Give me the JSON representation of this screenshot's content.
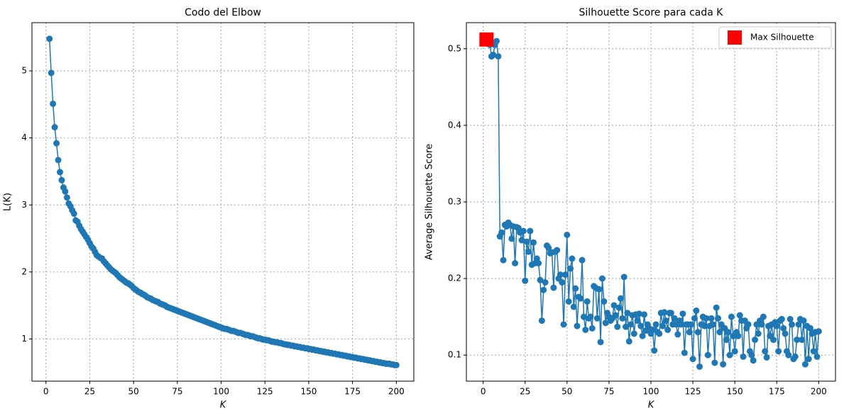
{
  "chart_data": [
    {
      "type": "line",
      "title": "Codo del Elbow",
      "xlabel": "K",
      "ylabel": "L(K)",
      "xlim": [
        -8,
        210
      ],
      "ylim": [
        0.37,
        5.72
      ],
      "xticks": [
        0,
        25,
        50,
        75,
        100,
        125,
        150,
        175,
        200
      ],
      "yticks": [
        1,
        2,
        3,
        4,
        5
      ],
      "grid": true,
      "series": [
        {
          "color": "#1f77b4",
          "marker": "circle",
          "x": [
            2,
            3,
            4,
            5,
            6,
            7,
            8,
            9,
            10,
            11,
            12,
            13,
            14,
            15,
            16,
            17,
            18,
            19,
            20,
            21,
            22,
            23,
            24,
            25,
            26,
            27,
            28,
            29,
            30,
            31,
            32,
            33,
            34,
            35,
            36,
            37,
            38,
            39,
            40,
            41,
            42,
            43,
            44,
            45,
            46,
            47,
            48,
            49,
            50,
            51,
            52,
            53,
            54,
            55,
            56,
            57,
            58,
            59,
            60,
            61,
            62,
            63,
            64,
            65,
            66,
            67,
            68,
            69,
            70,
            71,
            72,
            73,
            74,
            75,
            76,
            77,
            78,
            79,
            80,
            81,
            82,
            83,
            84,
            85,
            86,
            87,
            88,
            89,
            90,
            91,
            92,
            93,
            94,
            95,
            96,
            97,
            98,
            99,
            100,
            101,
            102,
            103,
            104,
            105,
            106,
            107,
            108,
            109,
            110,
            111,
            112,
            113,
            114,
            115,
            116,
            117,
            118,
            119,
            120,
            121,
            122,
            123,
            124,
            125,
            126,
            127,
            128,
            129,
            130,
            131,
            132,
            133,
            134,
            135,
            136,
            137,
            138,
            139,
            140,
            141,
            142,
            143,
            144,
            145,
            146,
            147,
            148,
            149,
            150,
            151,
            152,
            153,
            154,
            155,
            156,
            157,
            158,
            159,
            160,
            161,
            162,
            163,
            164,
            165,
            166,
            167,
            168,
            169,
            170,
            171,
            172,
            173,
            174,
            175,
            176,
            177,
            178,
            179,
            180,
            181,
            182,
            183,
            184,
            185,
            186,
            187,
            188,
            189,
            190,
            191,
            192,
            193,
            194,
            195,
            196,
            197,
            198,
            199,
            200
          ],
          "values": [
            5.48,
            4.97,
            4.51,
            4.16,
            3.92,
            3.67,
            3.49,
            3.37,
            3.26,
            3.2,
            3.11,
            3.02,
            2.98,
            2.92,
            2.87,
            2.77,
            2.75,
            2.69,
            2.64,
            2.6,
            2.56,
            2.52,
            2.48,
            2.43,
            2.38,
            2.35,
            2.3,
            2.25,
            2.23,
            2.21,
            2.2,
            2.16,
            2.13,
            2.1,
            2.07,
            2.04,
            2.02,
            2.0,
            1.98,
            1.95,
            1.92,
            1.9,
            1.88,
            1.86,
            1.84,
            1.83,
            1.81,
            1.79,
            1.76,
            1.74,
            1.72,
            1.7,
            1.69,
            1.67,
            1.66,
            1.64,
            1.62,
            1.61,
            1.6,
            1.58,
            1.57,
            1.56,
            1.55,
            1.53,
            1.52,
            1.51,
            1.5,
            1.48,
            1.47,
            1.46,
            1.45,
            1.44,
            1.43,
            1.42,
            1.41,
            1.4,
            1.39,
            1.38,
            1.37,
            1.36,
            1.35,
            1.34,
            1.33,
            1.32,
            1.31,
            1.3,
            1.29,
            1.28,
            1.27,
            1.26,
            1.25,
            1.24,
            1.23,
            1.22,
            1.21,
            1.2,
            1.19,
            1.18,
            1.17,
            1.16,
            1.15,
            1.15,
            1.14,
            1.13,
            1.12,
            1.12,
            1.11,
            1.1,
            1.09,
            1.09,
            1.08,
            1.07,
            1.06,
            1.06,
            1.05,
            1.04,
            1.04,
            1.03,
            1.02,
            1.01,
            1.01,
            1.0,
            0.99,
            0.99,
            0.98,
            0.98,
            0.97,
            0.96,
            0.96,
            0.95,
            0.95,
            0.94,
            0.94,
            0.93,
            0.92,
            0.92,
            0.91,
            0.91,
            0.9,
            0.9,
            0.89,
            0.89,
            0.88,
            0.88,
            0.87,
            0.87,
            0.86,
            0.86,
            0.85,
            0.85,
            0.84,
            0.84,
            0.83,
            0.83,
            0.82,
            0.82,
            0.81,
            0.81,
            0.8,
            0.8,
            0.79,
            0.79,
            0.78,
            0.78,
            0.77,
            0.77,
            0.76,
            0.76,
            0.75,
            0.75,
            0.74,
            0.74,
            0.73,
            0.73,
            0.72,
            0.72,
            0.71,
            0.71,
            0.7,
            0.7,
            0.69,
            0.69,
            0.68,
            0.68,
            0.67,
            0.67,
            0.66,
            0.66,
            0.65,
            0.65,
            0.64,
            0.64,
            0.63,
            0.63,
            0.63,
            0.62,
            0.62,
            0.61,
            0.61
          ]
        }
      ]
    },
    {
      "type": "line",
      "title": "Silhouette Score para cada K",
      "xlabel": "K",
      "ylabel": "Average Silhouette Score",
      "xlim": [
        -10,
        210
      ],
      "ylim": [
        0.066,
        0.534
      ],
      "xticks": [
        0,
        25,
        50,
        75,
        100,
        125,
        150,
        175,
        200
      ],
      "yticks": [
        0.1,
        0.2,
        0.3,
        0.4,
        0.5
      ],
      "grid": true,
      "legend": "upper right",
      "series": [
        {
          "color": "#1f77b4",
          "marker": "circle",
          "x": [
            2,
            3,
            4,
            5,
            6,
            7,
            8,
            9,
            10,
            11,
            12,
            13,
            14,
            15,
            16,
            17,
            18,
            19,
            20,
            21,
            22,
            23,
            24,
            25,
            26,
            27,
            28,
            29,
            30,
            31,
            32,
            33,
            34,
            35,
            36,
            37,
            38,
            39,
            40,
            41,
            42,
            43,
            44,
            45,
            46,
            47,
            48,
            49,
            50,
            51,
            52,
            53,
            54,
            55,
            56,
            57,
            58,
            59,
            60,
            61,
            62,
            63,
            64,
            65,
            66,
            67,
            68,
            69,
            70,
            71,
            72,
            73,
            74,
            75,
            76,
            77,
            78,
            79,
            80,
            81,
            82,
            83,
            84,
            85,
            86,
            87,
            88,
            89,
            90,
            91,
            92,
            93,
            94,
            95,
            96,
            97,
            98,
            99,
            100,
            101,
            102,
            103,
            104,
            105,
            106,
            107,
            108,
            109,
            110,
            111,
            112,
            113,
            114,
            115,
            116,
            117,
            118,
            119,
            120,
            121,
            122,
            123,
            124,
            125,
            126,
            127,
            128,
            129,
            130,
            131,
            132,
            133,
            134,
            135,
            136,
            137,
            138,
            139,
            140,
            141,
            142,
            143,
            144,
            145,
            146,
            147,
            148,
            149,
            150,
            151,
            152,
            153,
            154,
            155,
            156,
            157,
            158,
            159,
            160,
            161,
            162,
            163,
            164,
            165,
            166,
            167,
            168,
            169,
            170,
            171,
            172,
            173,
            174,
            175,
            176,
            177,
            178,
            179,
            180,
            181,
            182,
            183,
            184,
            185,
            186,
            187,
            188,
            189,
            190,
            191,
            192,
            193,
            194,
            195,
            196,
            197,
            198,
            199,
            200
          ],
          "values": [
            0.512,
            0.51,
            0.505,
            0.49,
            0.492,
            0.505,
            0.51,
            0.49,
            0.255,
            0.26,
            0.224,
            0.27,
            0.268,
            0.273,
            0.27,
            0.252,
            0.268,
            0.22,
            0.267,
            0.266,
            0.26,
            0.25,
            0.262,
            0.197,
            0.248,
            0.235,
            0.262,
            0.218,
            0.247,
            0.22,
            0.226,
            0.22,
            0.198,
            0.145,
            0.185,
            0.195,
            0.243,
            0.24,
            0.233,
            0.234,
            0.188,
            0.235,
            0.237,
            0.2,
            0.205,
            0.195,
            0.14,
            0.205,
            0.257,
            0.17,
            0.213,
            0.226,
            0.163,
            0.187,
            0.138,
            0.176,
            0.174,
            0.224,
            0.15,
            0.133,
            0.17,
            0.148,
            0.15,
            0.135,
            0.19,
            0.188,
            0.148,
            0.186,
            0.117,
            0.2,
            0.17,
            0.142,
            0.155,
            0.15,
            0.145,
            0.148,
            0.165,
            0.152,
            0.137,
            0.162,
            0.174,
            0.148,
            0.202,
            0.137,
            0.155,
            0.118,
            0.14,
            0.152,
            0.128,
            0.153,
            0.145,
            0.154,
            0.138,
            0.125,
            0.153,
            0.132,
            0.14,
            0.135,
            0.128,
            0.133,
            0.106,
            0.14,
            0.13,
            0.128,
            0.155,
            0.138,
            0.156,
            0.145,
            0.133,
            0.155,
            0.155,
            0.14,
            0.148,
            0.14,
            0.127,
            0.145,
            0.14,
            0.154,
            0.103,
            0.14,
            0.14,
            0.13,
            0.14,
            0.095,
            0.148,
            0.158,
            0.13,
            0.085,
            0.14,
            0.15,
            0.138,
            0.148,
            0.1,
            0.138,
            0.148,
            0.14,
            0.09,
            0.162,
            0.148,
            0.13,
            0.14,
            0.088,
            0.135,
            0.12,
            0.13,
            0.1,
            0.15,
            0.125,
            0.105,
            0.13,
            0.125,
            0.152,
            0.145,
            0.098,
            0.145,
            0.135,
            0.14,
            0.105,
            0.1,
            0.093,
            0.12,
            0.14,
            0.128,
            0.145,
            0.14,
            0.15,
            0.105,
            0.097,
            0.138,
            0.125,
            0.14,
            0.12,
            0.143,
            0.138,
            0.105,
            0.145,
            0.147,
            0.135,
            0.128,
            0.105,
            0.1,
            0.147,
            0.14,
            0.095,
            0.098,
            0.12,
            0.14,
            0.147,
            0.12,
            0.145,
            0.088,
            0.138,
            0.095,
            0.135,
            0.128,
            0.105,
            0.13,
            0.098,
            0.131
          ]
        },
        {
          "name": "Max Silhouette",
          "color": "#ff0000",
          "marker": "square",
          "linestyle": "none",
          "x": [
            2
          ],
          "values": [
            0.512
          ]
        }
      ]
    }
  ]
}
